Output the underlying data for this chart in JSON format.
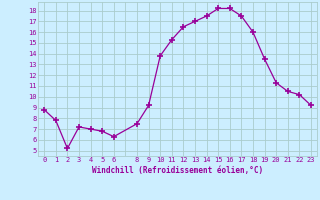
{
  "x": [
    0,
    1,
    2,
    3,
    4,
    5,
    6,
    8,
    9,
    10,
    11,
    12,
    13,
    14,
    15,
    16,
    17,
    18,
    19,
    20,
    21,
    22,
    23
  ],
  "y": [
    8.8,
    7.8,
    5.2,
    7.2,
    7.0,
    6.8,
    6.3,
    7.5,
    9.2,
    13.8,
    15.3,
    16.5,
    17.0,
    17.5,
    18.2,
    18.2,
    17.5,
    16.0,
    13.5,
    11.3,
    10.5,
    10.2,
    9.2
  ],
  "line_color": "#990099",
  "marker": "+",
  "marker_size": 4,
  "bg_color": "#cceeff",
  "grid_color": "#aacccc",
  "xlabel": "Windchill (Refroidissement éolien,°C)",
  "xlabel_color": "#990099",
  "tick_color": "#990099",
  "ylim": [
    4.5,
    18.8
  ],
  "yticks": [
    5,
    6,
    7,
    8,
    9,
    10,
    11,
    12,
    13,
    14,
    15,
    16,
    17,
    18
  ],
  "xtick_labels": [
    "0",
    "1",
    "2",
    "3",
    "4",
    "5",
    "6",
    "",
    "8",
    "9",
    "10",
    "11",
    "12",
    "13",
    "14",
    "15",
    "16",
    "17",
    "18",
    "19",
    "20",
    "21",
    "22",
    "23"
  ],
  "xtick_positions": [
    0,
    1,
    2,
    3,
    4,
    5,
    6,
    7,
    8,
    9,
    10,
    11,
    12,
    13,
    14,
    15,
    16,
    17,
    18,
    19,
    20,
    21,
    22,
    23
  ]
}
